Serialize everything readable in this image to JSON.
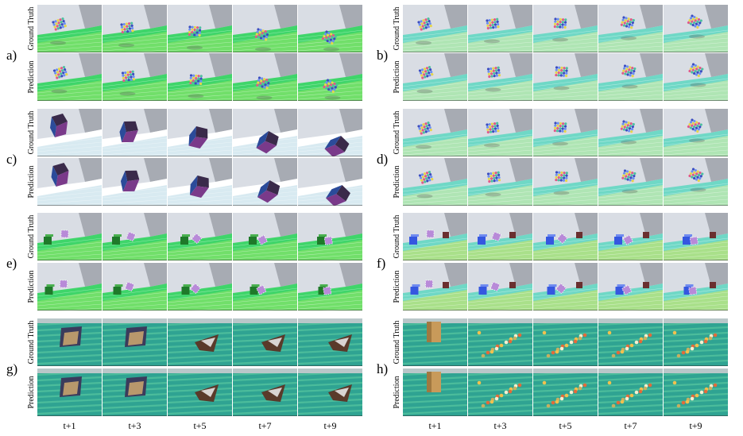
{
  "panels": [
    {
      "letter": "a)",
      "scene": "cloth",
      "top_label": "Ground Truth",
      "bottom_label": "Prediction"
    },
    {
      "letter": "b)",
      "scene": "cloth",
      "top_label": "Ground Truth",
      "bottom_label": "Prediction"
    },
    {
      "letter": "c)",
      "scene": "cube",
      "top_label": "Ground Truth",
      "bottom_label": "Prediction"
    },
    {
      "letter": "d)",
      "scene": "cloth",
      "top_label": "Ground Truth",
      "bottom_label": "Prediction"
    },
    {
      "letter": "e)",
      "scene": "cubes",
      "top_label": "Ground Truth",
      "bottom_label": "Prediction"
    },
    {
      "letter": "f)",
      "scene": "cubes",
      "top_label": "Ground Truth",
      "bottom_label": "Prediction"
    },
    {
      "letter": "g)",
      "scene": "sheet",
      "top_label": "Ground Truth",
      "bottom_label": "Prediction"
    },
    {
      "letter": "h)",
      "scene": "pile",
      "top_label": "Ground Truth",
      "bottom_label": "Prediction"
    }
  ],
  "time_labels": [
    "t+1",
    "t+3",
    "t+5",
    "t+7",
    "t+9"
  ],
  "colors": {
    "sky": "#d9dde4",
    "wall": "#a7abb3",
    "floor_green": "#3fd56a",
    "floor_cyan": "#6fd8c6",
    "floor_yellow": "#d8e85a"
  }
}
